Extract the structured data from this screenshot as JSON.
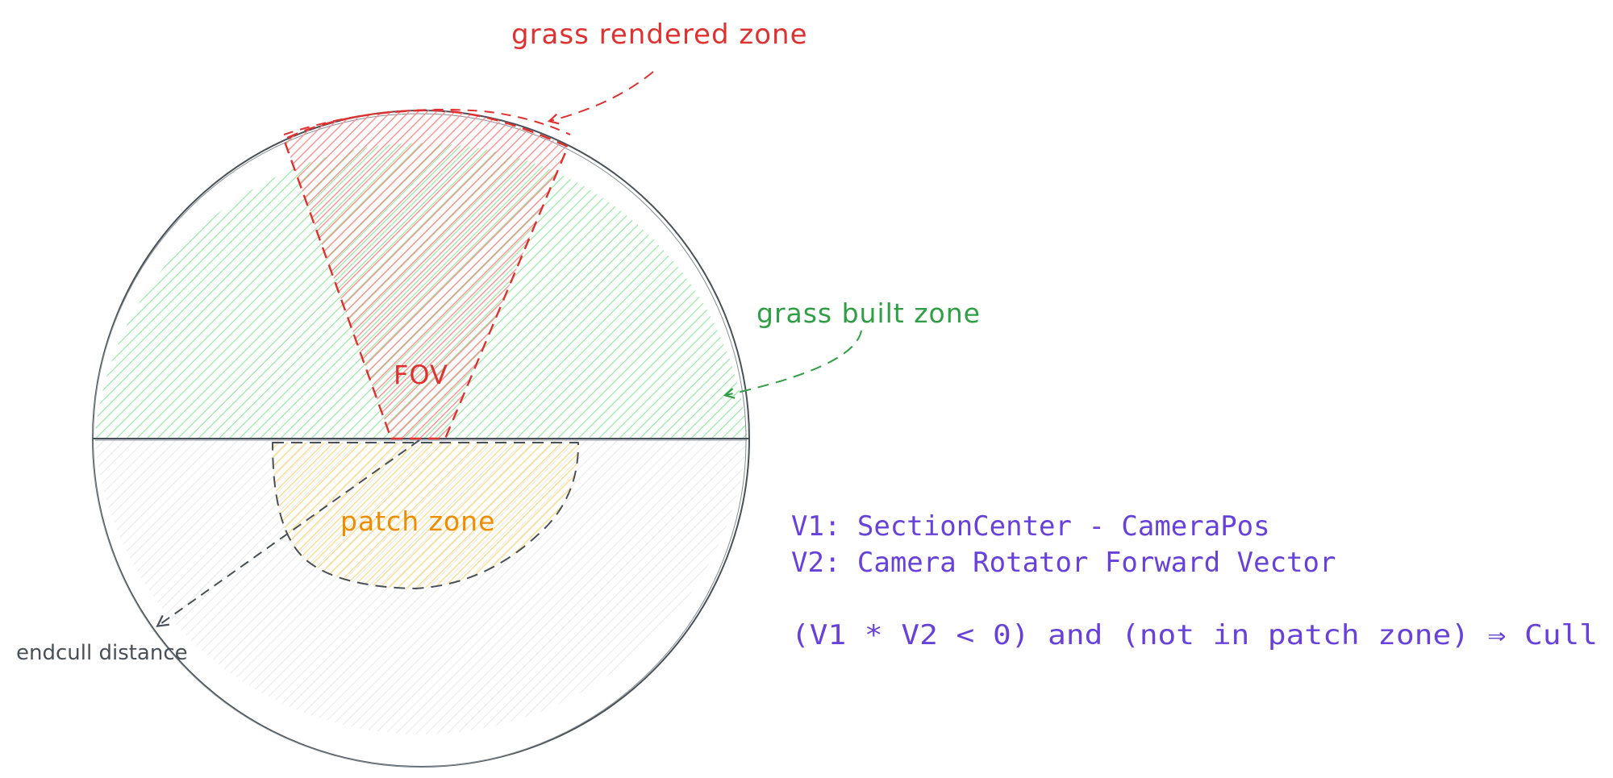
{
  "labels": {
    "grass_rendered_zone": "grass rendered zone",
    "grass_built_zone": "grass built zone",
    "fov": "FOV",
    "patch_zone": "patch zone",
    "endcull_distance": "endcull distance"
  },
  "formulas": {
    "v1": "V1: SectionCenter - CameraPos",
    "v2": "V2: Camera Rotator Forward Vector",
    "rule": "(V1 * V2 < 0) and (not in patch zone) ⇒ Cull"
  },
  "colors": {
    "red": "#e03131",
    "green": "#2f9e44",
    "green_fill": "#b2f2bb",
    "orange": "#f08c00",
    "orange_fill": "#ffec99",
    "gray": "#495057",
    "gray_fill": "#dee2e6",
    "purple": "#6741d9"
  }
}
